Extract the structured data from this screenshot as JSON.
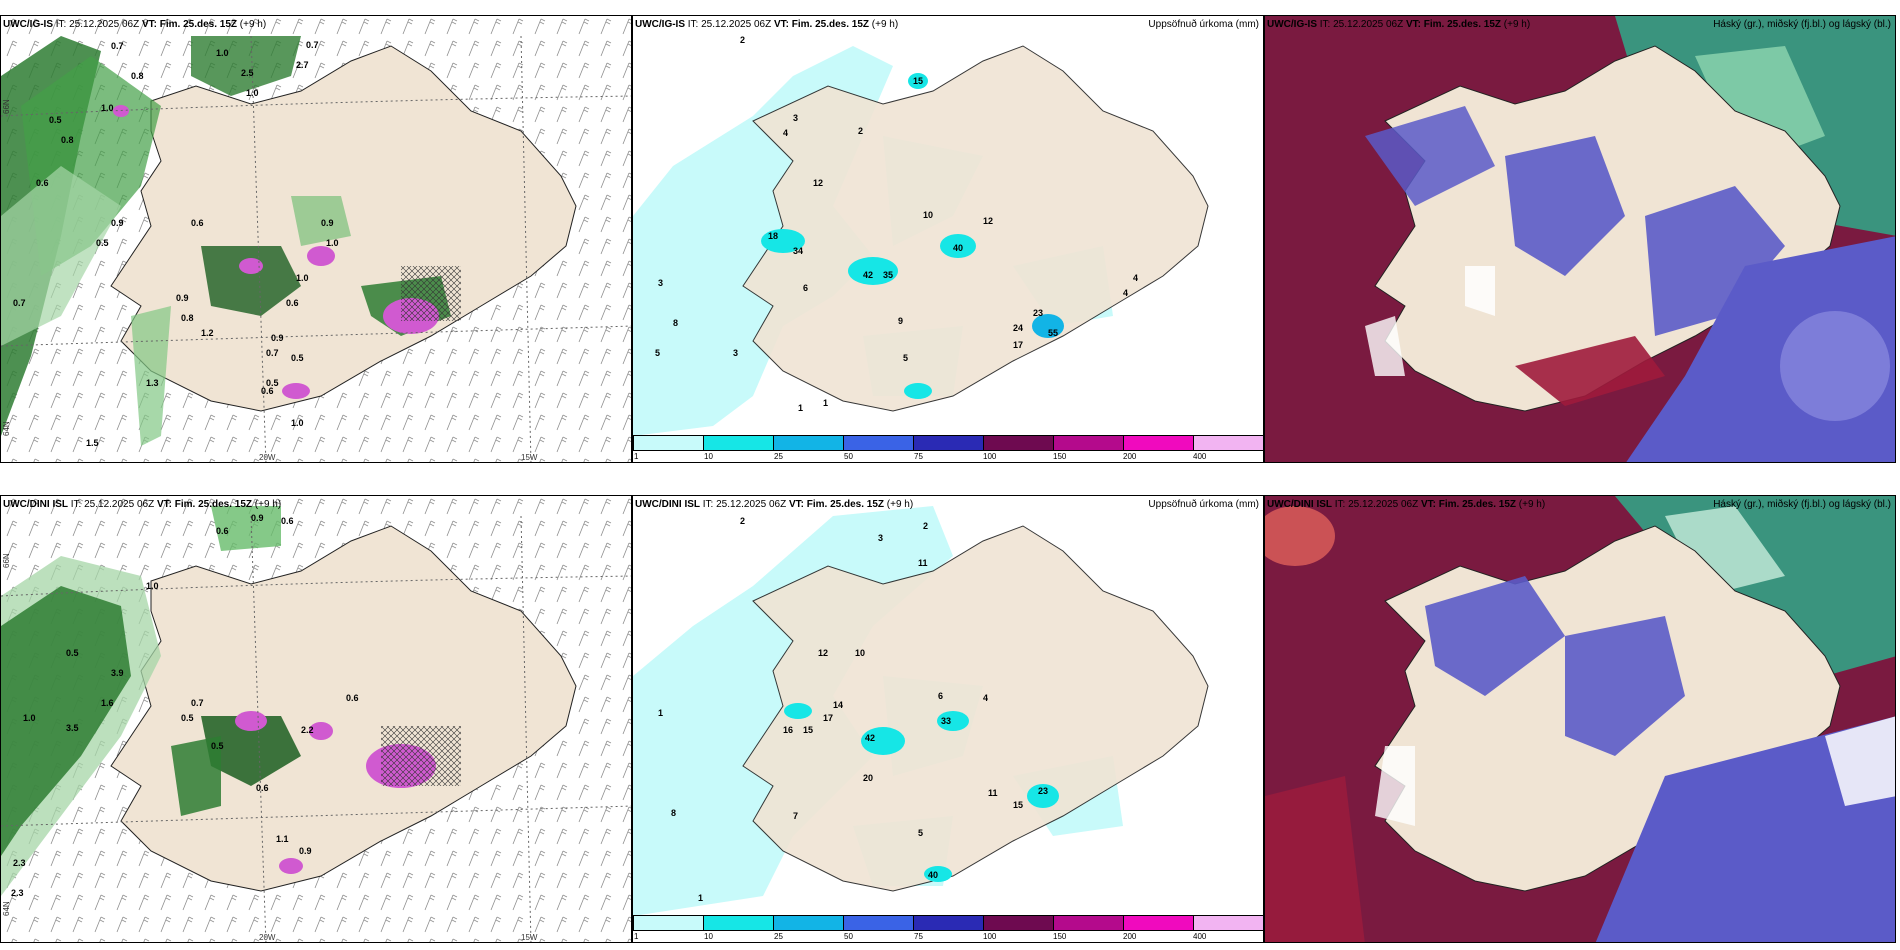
{
  "top": {
    "left": {
      "model": "UWC/IG-IS",
      "it_label": "IT:",
      "it": "25.12.2025 06Z",
      "vt_label": "VT:",
      "vt": "Fim. 25.des. 15Z",
      "step": "(+9 h)"
    },
    "mid": {
      "model": "UWC/IG-IS",
      "it_label": "IT:",
      "it": "25.12.2025 06Z",
      "vt_label": "VT:",
      "vt": "Fim. 25.des. 15Z",
      "step": "(+9 h)",
      "right_title": "Uppsöfnuð úrkoma (mm)"
    },
    "right": {
      "model": "UWC/IG-IS",
      "it_label": "IT:",
      "it": "25.12.2025 06Z",
      "vt_label": "VT:",
      "vt": "Fim. 25.des. 15Z",
      "step": "(+9 h)",
      "right_title": "Háský (gr.), miðský (fj.bl.) og lágský (bl.)"
    }
  },
  "bottom": {
    "left": {
      "model": "UWC/DINI ISL",
      "it_label": "IT:",
      "it": "25.12.2025 06Z",
      "vt_label": "VT:",
      "vt": "Fim. 25.des. 15Z",
      "step": "(+9 h)"
    },
    "mid": {
      "model": "UWC/DINI ISL",
      "it_label": "IT:",
      "it": "25.12.2025 06Z",
      "vt_label": "VT:",
      "vt": "Fim. 25.des. 15Z",
      "step": "(+9 h)",
      "right_title": "Uppsöfnuð úrkoma (mm)"
    },
    "right": {
      "model": "UWC/DINI ISL",
      "it_label": "IT:",
      "it": "25.12.2025 06Z",
      "vt_label": "VT:",
      "vt": "Fim. 25.des. 15Z",
      "step": "(+9 h)",
      "right_title": "Háský (gr.), miðský (fj.bl.) og lágský (bl.)"
    }
  },
  "axes": {
    "lon_20w": "20W",
    "lon_15w": "15W",
    "lat_66": "66N",
    "lat_65": "65N",
    "lat_64": "64N"
  },
  "colorbar": {
    "colors": [
      "#c8fafa",
      "#16e6e6",
      "#12b4e6",
      "#3a63e6",
      "#2a2ab4",
      "#6e0a50",
      "#b40a8c",
      "#f00abe",
      "#f2b4f2"
    ],
    "ticks": [
      "1",
      "10",
      "25",
      "50",
      "75",
      "100",
      "150",
      "200",
      "400"
    ]
  },
  "colors": {
    "land": "#f0e4d4",
    "cloud_high": "#7a1a40",
    "cloud_mid": "#5b5bc8",
    "cloud_low": "#2faa8a",
    "precip_light": "#c8fafa"
  },
  "top_wind_labels": [
    "0.7",
    "0.8",
    "1.0",
    "1.0",
    "2.5",
    "2.7",
    "0.7",
    "1.0",
    "0.9",
    "0.5",
    "0.8",
    "0.6",
    "0.6",
    "0.9",
    "1.0",
    "0.7",
    "1.2",
    "0.9",
    "0.6",
    "0.5",
    "0.6",
    "0.9",
    "1.0",
    "0.8",
    "0.7",
    "1.3",
    "0.5",
    "1.0",
    "0.5",
    "1.5"
  ],
  "top_precip_labels": [
    "2",
    "15",
    "3",
    "2",
    "4",
    "12",
    "18",
    "34",
    "40",
    "42",
    "35",
    "10",
    "12",
    "9",
    "6",
    "23",
    "24",
    "17",
    "55",
    "4",
    "3",
    "5",
    "8",
    "3",
    "1",
    "1",
    "5",
    "4"
  ],
  "bottom_wind_labels": [
    "0.6",
    "0.9",
    "0.6",
    "1.0",
    "0.5",
    "1.0",
    "3.9",
    "2.3",
    "1.6",
    "3.5",
    "0.7",
    "0.5",
    "0.6",
    "0.5",
    "1.1",
    "0.9",
    "2.3",
    "2.2",
    "0.6"
  ],
  "bottom_precip_labels": [
    "2",
    "3",
    "2",
    "11",
    "10",
    "14",
    "17",
    "15",
    "16",
    "12",
    "20",
    "42",
    "33",
    "6",
    "4",
    "11",
    "23",
    "15",
    "40",
    "8",
    "7",
    "5",
    "1",
    "1"
  ]
}
